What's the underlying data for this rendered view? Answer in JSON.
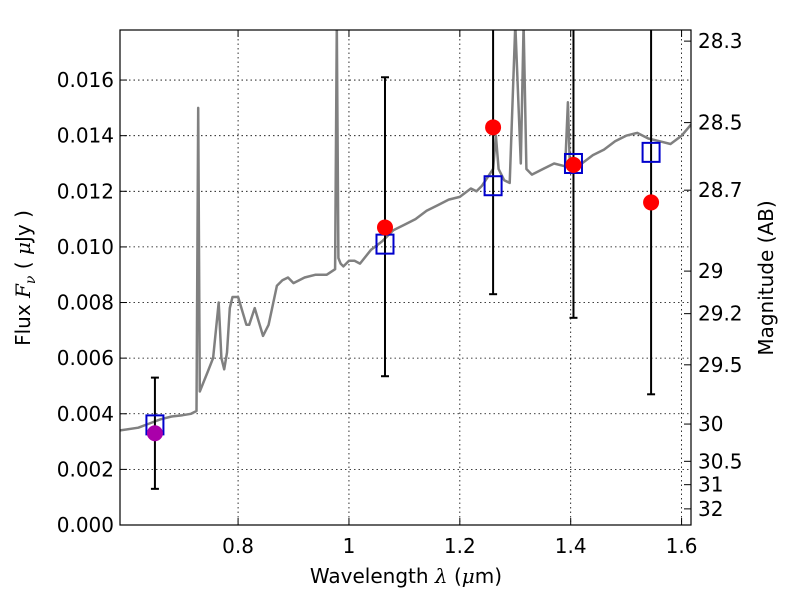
{
  "chart_data": {
    "type": "line",
    "xlabel": "Wavelength",
    "xlabel_symbol": "λ",
    "xlabel_unit_open": " (",
    "xlabel_unit_mu": "μ",
    "xlabel_unit_rest": "m)",
    "ylabel": "Flux",
    "ylabel_symbol_F": "F",
    "ylabel_symbol_nu": "ν",
    "ylabel_unit_open": "( ",
    "ylabel_unit_mu": "μ",
    "ylabel_unit_rest": "Jy )",
    "y2label": "Magnitude (AB)",
    "xlim": [
      0.587,
      1.617
    ],
    "ylim": [
      0.0,
      0.0178
    ],
    "x_ticks": [
      0.8,
      1.0,
      1.2,
      1.4,
      1.6
    ],
    "x_tick_labels": [
      "0.8",
      "1",
      "1.2",
      "1.4",
      "1.6"
    ],
    "y_ticks": [
      0.0,
      0.002,
      0.004,
      0.006,
      0.008,
      0.01,
      0.012,
      0.014,
      0.016
    ],
    "y_tick_labels": [
      "0.000",
      "0.002",
      "0.004",
      "0.006",
      "0.008",
      "0.010",
      "0.012",
      "0.014",
      "0.016"
    ],
    "y2_ticks": [
      {
        "label": "28.3",
        "flux": 0.0174
      },
      {
        "label": "28.5",
        "flux": 0.01447
      },
      {
        "label": "28.7",
        "flux": 0.01204
      },
      {
        "label": "29",
        "flux": 0.00913
      },
      {
        "label": "29.2",
        "flux": 0.0076
      },
      {
        "label": "29.5",
        "flux": 0.00576
      },
      {
        "label": "30",
        "flux": 0.00363
      },
      {
        "label": "30.5",
        "flux": 0.00229
      },
      {
        "label": "31",
        "flux": 0.00145
      },
      {
        "label": "32",
        "flux": 0.00058
      }
    ],
    "grid": true,
    "colors": {
      "spectrum": "#808080",
      "model_square": "#0000cc",
      "observed": "#ff0000",
      "first_observed": "#aa00aa",
      "errorbar": "#000000"
    },
    "spectrum": {
      "x": [
        0.587,
        0.62,
        0.64,
        0.66,
        0.68,
        0.7,
        0.715,
        0.725,
        0.728,
        0.731,
        0.735,
        0.745,
        0.755,
        0.765,
        0.77,
        0.775,
        0.78,
        0.785,
        0.79,
        0.8,
        0.815,
        0.82,
        0.83,
        0.845,
        0.855,
        0.87,
        0.88,
        0.89,
        0.9,
        0.92,
        0.94,
        0.96,
        0.975,
        0.978,
        0.981,
        0.985,
        0.99,
        1.0,
        1.01,
        1.02,
        1.04,
        1.06,
        1.08,
        1.1,
        1.12,
        1.14,
        1.16,
        1.18,
        1.2,
        1.22,
        1.23,
        1.24,
        1.25,
        1.26,
        1.265,
        1.27,
        1.28,
        1.29,
        1.3,
        1.31,
        1.315,
        1.32,
        1.33,
        1.35,
        1.37,
        1.39,
        1.395,
        1.398,
        1.401,
        1.41,
        1.42,
        1.44,
        1.46,
        1.48,
        1.5,
        1.52,
        1.54,
        1.56,
        1.58,
        1.6,
        1.617
      ],
      "y": [
        0.0034,
        0.0035,
        0.00365,
        0.0038,
        0.0039,
        0.00395,
        0.004,
        0.0041,
        0.015,
        0.0048,
        0.005,
        0.0055,
        0.006,
        0.008,
        0.006,
        0.0056,
        0.0062,
        0.0078,
        0.0082,
        0.0082,
        0.0072,
        0.0072,
        0.0078,
        0.0068,
        0.0072,
        0.0086,
        0.0088,
        0.0089,
        0.0087,
        0.0089,
        0.009,
        0.009,
        0.0092,
        0.018,
        0.0096,
        0.0094,
        0.0093,
        0.0095,
        0.0095,
        0.0094,
        0.0099,
        0.0102,
        0.0106,
        0.0108,
        0.011,
        0.0113,
        0.0115,
        0.0117,
        0.0118,
        0.0121,
        0.012,
        0.0122,
        0.0125,
        0.0128,
        0.014,
        0.0128,
        0.0124,
        0.0123,
        0.018,
        0.013,
        0.018,
        0.0128,
        0.0126,
        0.0128,
        0.013,
        0.0129,
        0.0152,
        0.0132,
        0.013,
        0.0131,
        0.013,
        0.0133,
        0.0135,
        0.0138,
        0.014,
        0.0141,
        0.0139,
        0.0138,
        0.0137,
        0.014,
        0.0144
      ]
    },
    "model_points": {
      "x": [
        0.65,
        1.065,
        1.26,
        1.405,
        1.545
      ],
      "y": [
        0.0036,
        0.0101,
        0.0122,
        0.013,
        0.0134
      ]
    },
    "observed_points": {
      "x": [
        0.65,
        1.065,
        1.26,
        1.405,
        1.545
      ],
      "y": [
        0.0033,
        0.0107,
        0.0143,
        0.01295,
        0.0116
      ],
      "y_err_low": [
        0.0013,
        0.00535,
        0.0083,
        0.00745,
        0.0047
      ],
      "y_err_high": [
        0.0053,
        0.0161,
        0.018,
        0.018,
        0.018
      ]
    }
  }
}
